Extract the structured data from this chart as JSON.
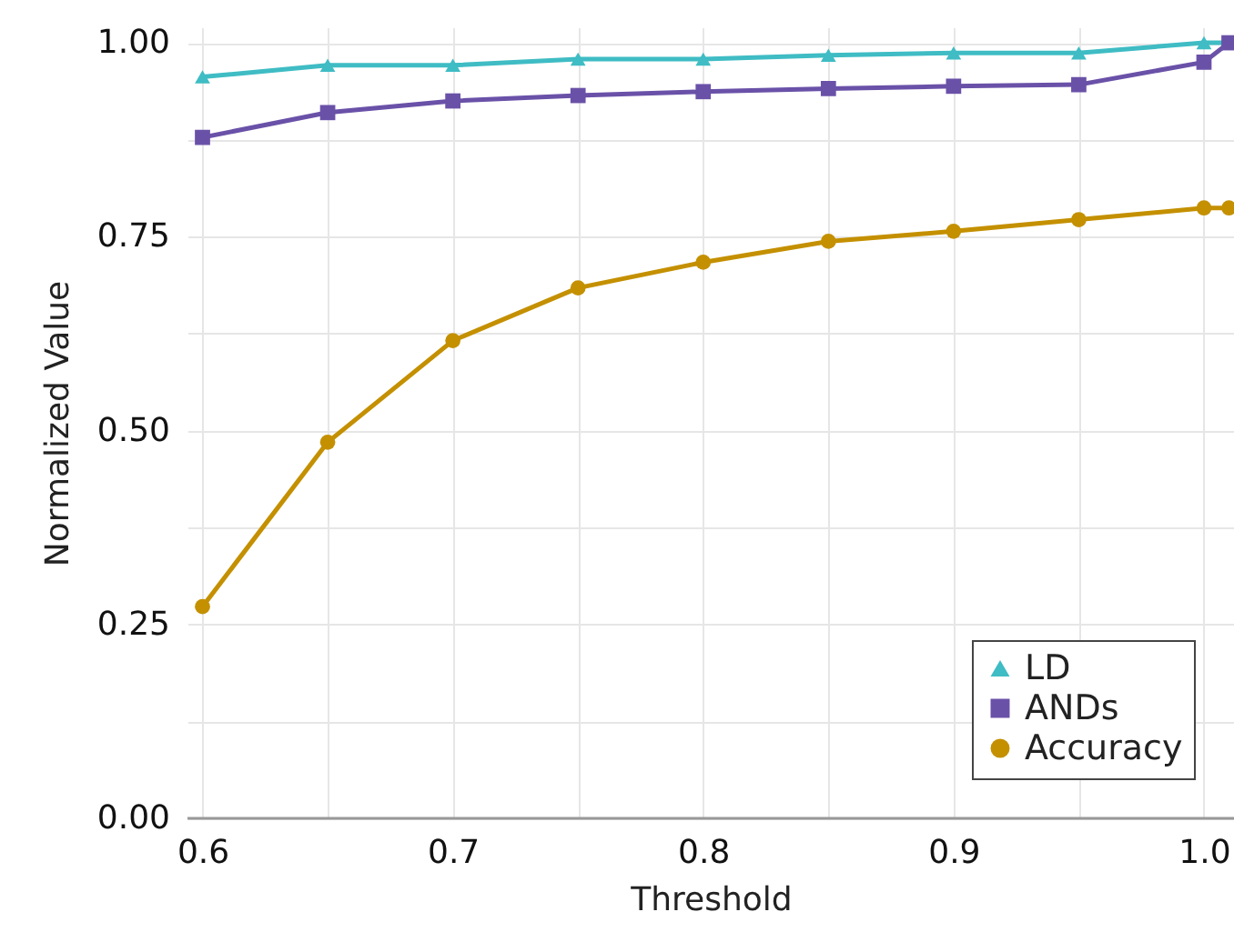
{
  "chart_data": {
    "type": "line",
    "xlabel": "Threshold",
    "ylabel": "Normalized Value",
    "x": [
      0.6,
      0.65,
      0.7,
      0.75,
      0.8,
      0.85,
      0.9,
      0.95,
      1.0,
      1.01
    ],
    "series": [
      {
        "name": "LD",
        "color": "#3fbcc4",
        "marker": "triangle",
        "values": [
          0.956,
          0.971,
          0.971,
          0.979,
          0.979,
          0.984,
          0.987,
          0.987,
          1.0,
          1.0
        ]
      },
      {
        "name": "ANDs",
        "color": "#6a51a8",
        "marker": "square",
        "values": [
          0.878,
          0.91,
          0.925,
          0.932,
          0.937,
          0.941,
          0.944,
          0.946,
          0.975,
          1.0
        ]
      },
      {
        "name": "Accuracy",
        "color": "#c49000",
        "marker": "circle",
        "values": [
          0.273,
          0.485,
          0.616,
          0.684,
          0.717,
          0.744,
          0.757,
          0.772,
          0.787,
          0.787
        ]
      }
    ],
    "xlim": [
      0.594,
      1.012
    ],
    "xticks": [
      0.6,
      {
        "value": 0.65,
        "label": null
      },
      0.7,
      {
        "value": 0.75,
        "label": null
      },
      0.8,
      {
        "value": 0.85,
        "label": null
      },
      0.9,
      {
        "value": 0.95,
        "label": null
      },
      {
        "value": 1.0,
        "label": "1.0"
      }
    ],
    "ylim": [
      0,
      1.02
    ],
    "yticks": [
      {
        "value": 0,
        "label": "0.00"
      },
      {
        "value": 0.125,
        "label": null
      },
      {
        "value": 0.25,
        "label": "0.25"
      },
      {
        "value": 0.375,
        "label": null
      },
      {
        "value": 0.5,
        "label": "0.50"
      },
      {
        "value": 0.625,
        "label": null
      },
      {
        "value": 0.75,
        "label": "0.75"
      },
      {
        "value": 0.875,
        "label": null
      },
      {
        "value": 1.0,
        "label": "1.00"
      }
    ],
    "grid": true,
    "legend": "bottom right",
    "line_style": "solid"
  }
}
